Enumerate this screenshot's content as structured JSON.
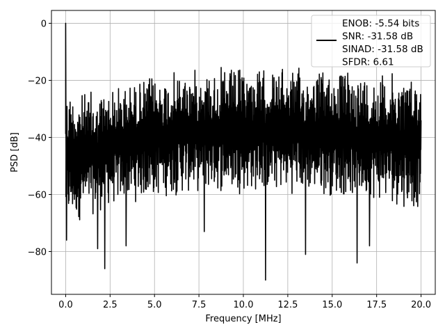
{
  "chart_data": {
    "type": "line",
    "title": "",
    "xlabel": "Frequency [MHz]",
    "ylabel": "PSD [dB]",
    "xlim": [
      -0.8,
      20.8
    ],
    "ylim": [
      -95,
      4.5
    ],
    "x_ticks": [
      0.0,
      2.5,
      5.0,
      7.5,
      10.0,
      12.5,
      15.0,
      17.5,
      20.0
    ],
    "x_tick_labels": [
      "0.0",
      "2.5",
      "5.0",
      "7.5",
      "10.0",
      "12.5",
      "15.0",
      "17.5",
      "20.0"
    ],
    "y_ticks": [
      0,
      -20,
      -40,
      -60,
      -80
    ],
    "y_tick_labels": [
      "0",
      "−20",
      "−40",
      "−60",
      "−80"
    ],
    "grid": true,
    "legend_position": "top-right",
    "series": [
      {
        "name": "ENOB: -5.54 bits\nSNR: -31.58 dB\nSINAD: -31.58 dB\nSFDR: 6.61",
        "color": "#000000",
        "x_range": [
          0.0,
          20.0
        ],
        "peak": {
          "x": 0.0,
          "y": 0.0
        },
        "upper_envelope": [
          {
            "x": 0.0,
            "y": -21
          },
          {
            "x": 1.0,
            "y": -23.5
          },
          {
            "x": 2.5,
            "y": -21.5
          },
          {
            "x": 5.0,
            "y": -17.5
          },
          {
            "x": 7.5,
            "y": -15
          },
          {
            "x": 10.0,
            "y": -15
          },
          {
            "x": 12.5,
            "y": -15
          },
          {
            "x": 15.0,
            "y": -15.5
          },
          {
            "x": 17.5,
            "y": -16.5
          },
          {
            "x": 20.0,
            "y": -17.5
          }
        ],
        "lower_envelope": [
          {
            "x": 0.0,
            "y": -72
          },
          {
            "x": 2.5,
            "y": -65
          },
          {
            "x": 5.0,
            "y": -62
          },
          {
            "x": 7.5,
            "y": -60
          },
          {
            "x": 10.0,
            "y": -60
          },
          {
            "x": 12.5,
            "y": -60
          },
          {
            "x": 15.0,
            "y": -61
          },
          {
            "x": 17.5,
            "y": -63
          },
          {
            "x": 20.0,
            "y": -66
          }
        ],
        "notable_dips": [
          {
            "x": 0.05,
            "y": -76
          },
          {
            "x": 1.8,
            "y": -79
          },
          {
            "x": 2.2,
            "y": -86
          },
          {
            "x": 3.4,
            "y": -78
          },
          {
            "x": 7.8,
            "y": -73
          },
          {
            "x": 11.25,
            "y": -90
          },
          {
            "x": 13.5,
            "y": -81
          },
          {
            "x": 16.4,
            "y": -84
          },
          {
            "x": 17.1,
            "y": -78
          }
        ]
      }
    ]
  }
}
